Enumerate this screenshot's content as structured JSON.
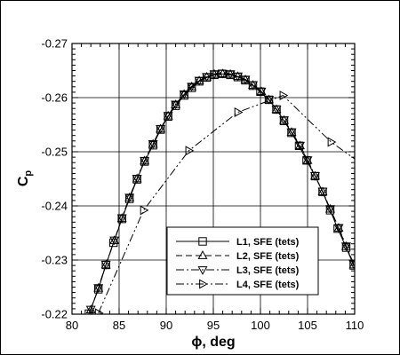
{
  "chart_data": {
    "type": "line",
    "xlabel": "ϕ, deg",
    "ylabel_main": "C",
    "ylabel_sub": "p",
    "xlim": [
      80,
      110
    ],
    "ylim": [
      -0.22,
      -0.27
    ],
    "y_reversed": true,
    "xticks": [
      80,
      85,
      90,
      95,
      100,
      105,
      110
    ],
    "yticks": [
      -0.22,
      -0.23,
      -0.24,
      -0.25,
      -0.26,
      -0.27
    ],
    "xtick_labels": [
      "80",
      "85",
      "90",
      "95",
      "100",
      "105",
      "110"
    ],
    "ytick_labels": [
      "-0.22",
      "-0.23",
      "-0.24",
      "-0.25",
      "-0.26",
      "-0.27"
    ],
    "grid": true,
    "legend_position": "lower-right",
    "series": [
      {
        "name": "L1, SFE (tets)",
        "marker": "square",
        "dash": "solid",
        "x": [
          81.8,
          82.8,
          83.6,
          84.4,
          85.3,
          86.1,
          86.9,
          87.7,
          88.6,
          89.4,
          90.2,
          91.0,
          91.9,
          92.7,
          93.5,
          94.3,
          95.1,
          95.9,
          96.8,
          97.6,
          98.4,
          99.2,
          100.0,
          100.9,
          101.7,
          102.5,
          103.3,
          104.1,
          104.9,
          105.8,
          106.6,
          107.4,
          108.2,
          109.1,
          109.9
        ],
        "y": [
          -0.2201,
          -0.2246,
          -0.2291,
          -0.2332,
          -0.2376,
          -0.2413,
          -0.2449,
          -0.2482,
          -0.2512,
          -0.2541,
          -0.2565,
          -0.2585,
          -0.2604,
          -0.2618,
          -0.263,
          -0.2637,
          -0.2642,
          -0.2644,
          -0.2642,
          -0.2638,
          -0.2632,
          -0.2622,
          -0.2611,
          -0.2596,
          -0.2578,
          -0.2557,
          -0.2535,
          -0.2511,
          -0.2484,
          -0.2455,
          -0.2426,
          -0.2392,
          -0.2358,
          -0.2323,
          -0.229
        ]
      },
      {
        "name": "L2, SFE (tets)",
        "marker": "triangle-up",
        "dash": "dashed",
        "x": [
          82.0,
          82.8,
          83.6,
          84.5,
          85.3,
          86.1,
          86.9,
          87.7,
          88.6,
          89.4,
          90.2,
          91.0,
          91.9,
          92.7,
          93.5,
          94.3,
          95.1,
          96.0,
          96.8,
          97.6,
          98.4,
          99.2,
          100.1,
          100.9,
          101.7,
          102.5,
          103.3,
          104.2,
          105.0,
          105.8,
          106.6,
          107.4,
          108.3,
          109.1,
          109.9
        ],
        "y": [
          -0.2208,
          -0.2248,
          -0.2291,
          -0.2336,
          -0.2377,
          -0.2415,
          -0.245,
          -0.2483,
          -0.2514,
          -0.2542,
          -0.2566,
          -0.2587,
          -0.2606,
          -0.262,
          -0.2631,
          -0.2638,
          -0.2643,
          -0.2644,
          -0.2643,
          -0.2639,
          -0.2633,
          -0.2623,
          -0.2611,
          -0.2596,
          -0.2578,
          -0.2558,
          -0.2536,
          -0.2511,
          -0.2484,
          -0.2455,
          -0.2426,
          -0.2394,
          -0.2359,
          -0.2325,
          -0.2291
        ]
      },
      {
        "name": "L3, SFE (tets)",
        "marker": "triangle-down",
        "dash": "dashdot",
        "x": [
          82.0,
          82.8,
          83.6,
          84.5,
          85.3,
          86.1,
          86.9,
          87.7,
          88.6,
          89.4,
          90.2,
          91.0,
          91.9,
          92.7,
          93.5,
          94.3,
          95.1,
          96.0,
          96.8,
          97.6,
          98.4,
          99.2,
          100.1,
          100.9,
          101.7,
          102.5,
          103.3,
          104.2,
          105.0,
          105.8,
          106.6,
          107.4,
          108.3,
          109.1,
          109.9
        ],
        "y": [
          -0.2209,
          -0.2249,
          -0.2292,
          -0.2337,
          -0.2378,
          -0.2416,
          -0.2451,
          -0.2484,
          -0.2515,
          -0.2543,
          -0.2567,
          -0.2588,
          -0.2607,
          -0.2621,
          -0.2632,
          -0.2639,
          -0.2644,
          -0.2645,
          -0.2644,
          -0.264,
          -0.2634,
          -0.2624,
          -0.2612,
          -0.2597,
          -0.2579,
          -0.2559,
          -0.2537,
          -0.2512,
          -0.2485,
          -0.2456,
          -0.2427,
          -0.2395,
          -0.236,
          -0.2326,
          -0.2293
        ]
      },
      {
        "name": "L4, SFE (tets)",
        "marker": "triangle-right",
        "dash": "dashdotdot",
        "x": [
          82.8,
          87.6,
          92.4,
          97.6,
          102.4,
          107.5,
          112.0
        ],
        "y": [
          -0.2202,
          -0.2392,
          -0.2502,
          -0.2573,
          -0.2604,
          -0.2518,
          -0.2462
        ]
      }
    ]
  }
}
